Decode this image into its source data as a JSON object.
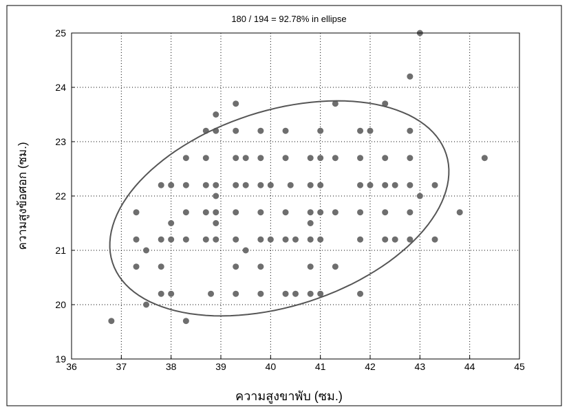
{
  "chart_data": {
    "type": "scatter",
    "title": "180 / 194 = 92.78% in ellipse",
    "x_label": "ความสูงขาพับ (ซม.)",
    "y_label": "ความสูงข้อศอก (ซม.)",
    "xlim": [
      36,
      45
    ],
    "xticks": [
      36,
      37,
      38,
      39,
      40,
      41,
      42,
      43,
      44,
      45
    ],
    "ylim": [
      19,
      25
    ],
    "yticks": [
      19,
      20,
      21,
      22,
      23,
      24,
      25
    ],
    "grid": true,
    "color": "#6e6e6e",
    "x": [
      43,
      42.8,
      39.3,
      41.3,
      42.3,
      38.9,
      38.7,
      38.9,
      39.3,
      39.8,
      40.3,
      41.0,
      41.8,
      42.0,
      42.8,
      38.3,
      38.7,
      39.3,
      39.5,
      39.8,
      40.3,
      40.8,
      41.0,
      41.3,
      41.8,
      42.3,
      42.8,
      44.3,
      37.8,
      38.0,
      38.3,
      38.7,
      38.9,
      39.3,
      39.5,
      39.8,
      40.0,
      40.4,
      40.8,
      41.0,
      41.8,
      42.0,
      42.3,
      42.5,
      42.8,
      43.3,
      38.9,
      43.0,
      37.3,
      38.3,
      38.7,
      38.9,
      39.3,
      39.8,
      40.3,
      40.8,
      41.0,
      41.3,
      41.8,
      42.3,
      42.8,
      43.8,
      38.0,
      38.9,
      40.8,
      37.3,
      37.8,
      38.0,
      38.3,
      38.7,
      38.9,
      39.3,
      39.8,
      40.0,
      40.3,
      40.5,
      40.8,
      41.0,
      41.8,
      42.3,
      42.5,
      42.8,
      43.3,
      37.5,
      39.5,
      37.3,
      37.8,
      39.3,
      39.8,
      40.8,
      41.3,
      37.8,
      38.0,
      38.8,
      39.3,
      39.8,
      40.3,
      40.5,
      40.8,
      41.0,
      41.8,
      37.5,
      36.8,
      38.3
    ],
    "values": [
      25,
      24.2,
      23.7,
      23.7,
      23.7,
      23.5,
      23.2,
      23.2,
      23.2,
      23.2,
      23.2,
      23.2,
      23.2,
      23.2,
      23.2,
      22.7,
      22.7,
      22.7,
      22.7,
      22.7,
      22.7,
      22.7,
      22.7,
      22.7,
      22.7,
      22.7,
      22.7,
      22.7,
      22.2,
      22.2,
      22.2,
      22.2,
      22.2,
      22.2,
      22.2,
      22.2,
      22.2,
      22.2,
      22.2,
      22.2,
      22.2,
      22.2,
      22.2,
      22.2,
      22.2,
      22.2,
      22.0,
      22.0,
      21.7,
      21.7,
      21.7,
      21.7,
      21.7,
      21.7,
      21.7,
      21.7,
      21.7,
      21.7,
      21.7,
      21.7,
      21.7,
      21.7,
      21.5,
      21.5,
      21.5,
      21.2,
      21.2,
      21.2,
      21.2,
      21.2,
      21.2,
      21.2,
      21.2,
      21.2,
      21.2,
      21.2,
      21.2,
      21.2,
      21.2,
      21.2,
      21.2,
      21.2,
      21.2,
      21.0,
      21.0,
      20.7,
      20.7,
      20.7,
      20.7,
      20.7,
      20.7,
      20.2,
      20.2,
      20.2,
      20.2,
      20.2,
      20.2,
      20.2,
      20.2,
      20.2,
      20.2,
      20.0,
      19.7,
      19.7
    ]
  }
}
